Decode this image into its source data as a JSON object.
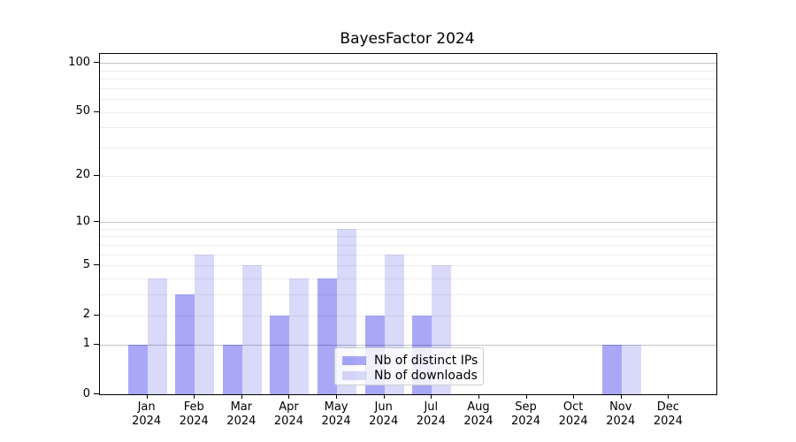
{
  "title": "BayesFactor 2024",
  "year_label": "2024",
  "chart_data": {
    "type": "bar",
    "title": "BayesFactor 2024",
    "categories": [
      "Jan 2024",
      "Feb 2024",
      "Mar 2024",
      "Apr 2024",
      "May 2024",
      "Jun 2024",
      "Jul 2024",
      "Aug 2024",
      "Sep 2024",
      "Oct 2024",
      "Nov 2024",
      "Dec 2024"
    ],
    "month_short": [
      "Jan",
      "Feb",
      "Mar",
      "Apr",
      "May",
      "Jun",
      "Jul",
      "Aug",
      "Sep",
      "Oct",
      "Nov",
      "Dec"
    ],
    "series": [
      {
        "name": "Nb of distinct IPs",
        "color": "rgba(0,0,230,0.34)",
        "color_on_white": "#a8a8f6",
        "values": [
          1,
          3,
          1,
          2,
          4,
          2,
          2,
          0,
          0,
          0,
          1,
          0
        ]
      },
      {
        "name": "Nb of downloads",
        "color": "rgba(0,0,220,0.15)",
        "color_on_white": "#d9d9fa",
        "values": [
          4,
          6,
          5,
          4,
          9,
          6,
          5,
          0,
          0,
          0,
          1,
          0
        ]
      }
    ],
    "xlabel": "",
    "ylabel": "",
    "yscale": "log1p",
    "ylim": [
      0,
      113
    ],
    "yticks": [
      0,
      1,
      2,
      5,
      10,
      20,
      50,
      100
    ],
    "major_gridlines": [
      1,
      10,
      100
    ],
    "minor_gridlines": [
      2,
      3,
      4,
      5,
      6,
      7,
      8,
      9,
      20,
      30,
      40,
      50,
      60,
      70,
      80,
      90
    ],
    "grid": "on",
    "legend_position": "lower-center",
    "legend_entries": [
      "Nb of distinct IPs",
      "Nb of downloads"
    ]
  },
  "colors": {
    "axis": "#000000",
    "major_grid": "#c3c3c3",
    "minor_grid": "#ededed",
    "legend_border": "#cccccc",
    "background": "#ffffff"
  }
}
